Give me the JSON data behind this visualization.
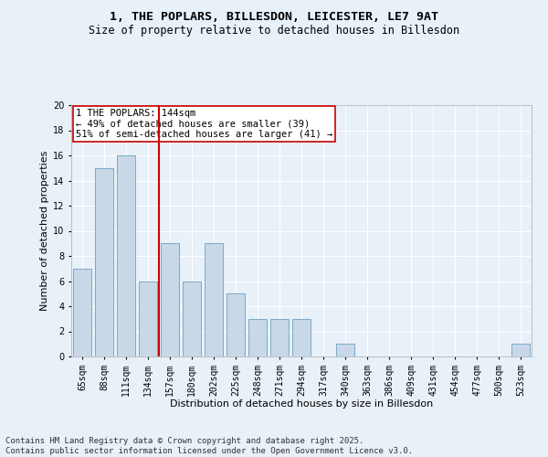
{
  "title": "1, THE POPLARS, BILLESDON, LEICESTER, LE7 9AT",
  "subtitle": "Size of property relative to detached houses in Billesdon",
  "xlabel": "Distribution of detached houses by size in Billesdon",
  "ylabel": "Number of detached properties",
  "categories": [
    "65sqm",
    "88sqm",
    "111sqm",
    "134sqm",
    "157sqm",
    "180sqm",
    "202sqm",
    "225sqm",
    "248sqm",
    "271sqm",
    "294sqm",
    "317sqm",
    "340sqm",
    "363sqm",
    "386sqm",
    "409sqm",
    "431sqm",
    "454sqm",
    "477sqm",
    "500sqm",
    "523sqm"
  ],
  "values": [
    7,
    15,
    16,
    6,
    9,
    6,
    9,
    5,
    3,
    3,
    3,
    0,
    1,
    0,
    0,
    0,
    0,
    0,
    0,
    0,
    1
  ],
  "bar_color": "#c8d8e8",
  "bar_edge_color": "#7aaac8",
  "vline_x_index": 3,
  "vline_color": "#cc0000",
  "annotation_text": "1 THE POPLARS: 144sqm\n← 49% of detached houses are smaller (39)\n51% of semi-detached houses are larger (41) →",
  "annotation_box_color": "#ffffff",
  "annotation_box_edge": "#cc0000",
  "ylim": [
    0,
    20
  ],
  "yticks": [
    0,
    2,
    4,
    6,
    8,
    10,
    12,
    14,
    16,
    18,
    20
  ],
  "bg_color": "#e8f0f8",
  "plot_bg_color": "#e8f0f8",
  "grid_color": "#ffffff",
  "footer_text": "Contains HM Land Registry data © Crown copyright and database right 2025.\nContains public sector information licensed under the Open Government Licence v3.0.",
  "title_fontsize": 9.5,
  "subtitle_fontsize": 8.5,
  "xlabel_fontsize": 8,
  "ylabel_fontsize": 8,
  "tick_fontsize": 7,
  "annotation_fontsize": 7.5,
  "footer_fontsize": 6.5
}
